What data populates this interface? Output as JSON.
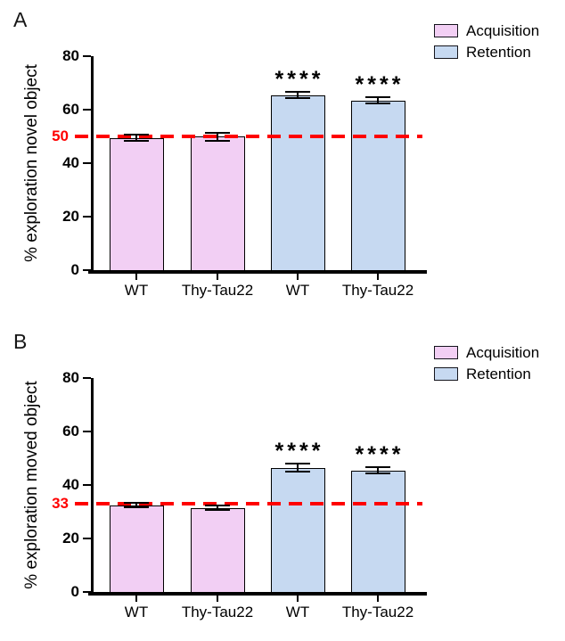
{
  "chart_data": [
    {
      "type": "bar",
      "panel": "A",
      "title": "",
      "ylabel": "% exploration novel object",
      "xlabel": "",
      "ylim": [
        0,
        80
      ],
      "yticks": [
        0,
        20,
        40,
        60,
        80
      ],
      "grid": false,
      "legend_position": "top-right",
      "legend": [
        {
          "label": "Acquisition",
          "color": "#F2CFF4"
        },
        {
          "label": "Retention",
          "color": "#C6D9F1"
        }
      ],
      "reference_line": {
        "value": 50,
        "label": "50",
        "color": "#FF0000",
        "style": "dashed"
      },
      "categories": [
        "WT",
        "Thy-Tau22",
        "WT",
        "Thy-Tau22"
      ],
      "bars": [
        {
          "category": "WT",
          "group": "Acquisition",
          "value": 49.5,
          "error": 1.2,
          "significance": ""
        },
        {
          "category": "Thy-Tau22",
          "group": "Acquisition",
          "value": 50,
          "error": 1.5,
          "significance": ""
        },
        {
          "category": "WT",
          "group": "Retention",
          "value": 65.5,
          "error": 1.2,
          "significance": "****"
        },
        {
          "category": "Thy-Tau22",
          "group": "Retention",
          "value": 63.5,
          "error": 1.2,
          "significance": "****"
        }
      ]
    },
    {
      "type": "bar",
      "panel": "B",
      "title": "",
      "ylabel": "% exploration moved object",
      "xlabel": "",
      "ylim": [
        0,
        80
      ],
      "yticks": [
        0,
        20,
        40,
        60,
        80
      ],
      "grid": false,
      "legend_position": "top-right",
      "legend": [
        {
          "label": "Acquisition",
          "color": "#F2CFF4"
        },
        {
          "label": "Retention",
          "color": "#C6D9F1"
        }
      ],
      "reference_line": {
        "value": 33,
        "label": "33",
        "color": "#FF0000",
        "style": "dashed"
      },
      "categories": [
        "WT",
        "Thy-Tau22",
        "WT",
        "Thy-Tau22"
      ],
      "bars": [
        {
          "category": "WT",
          "group": "Acquisition",
          "value": 32.5,
          "error": 0.8,
          "significance": ""
        },
        {
          "category": "Thy-Tau22",
          "group": "Acquisition",
          "value": 31.5,
          "error": 0.8,
          "significance": ""
        },
        {
          "category": "WT",
          "group": "Retention",
          "value": 46.5,
          "error": 1.5,
          "significance": "****"
        },
        {
          "category": "Thy-Tau22",
          "group": "Retention",
          "value": 45.5,
          "error": 1.2,
          "significance": "****"
        }
      ]
    }
  ],
  "styles": {
    "axis_color": "#000000",
    "bar_border_color": "#000000",
    "acquisition_fill": "#F2CFF4",
    "retention_fill": "#C6D9F1",
    "reference_color": "#FF0000"
  }
}
